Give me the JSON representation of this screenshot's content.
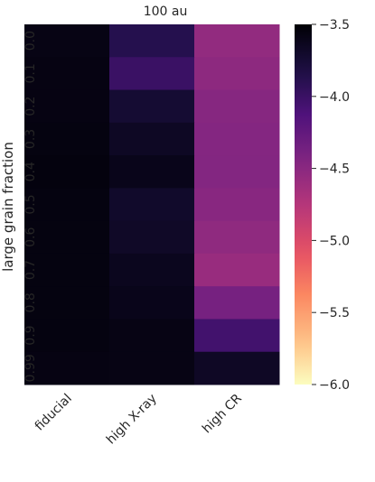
{
  "chart_data": {
    "type": "heatmap",
    "title": "100 au",
    "xlabel": "",
    "ylabel": "large grain fraction",
    "x_categories": [
      "fiducial",
      "high X-ray",
      "high CR"
    ],
    "y_categories": [
      "0.0",
      "0.1",
      "0.2",
      "0.3",
      "0.4",
      "0.5",
      "0.6",
      "0.7",
      "0.8",
      "0.9",
      "0.99"
    ],
    "values": [
      [
        -3.58,
        -3.88,
        -4.55
      ],
      [
        -3.57,
        -4.0,
        -4.52
      ],
      [
        -3.57,
        -3.74,
        -4.48
      ],
      [
        -3.56,
        -3.66,
        -4.47
      ],
      [
        -3.55,
        -3.61,
        -4.46
      ],
      [
        -3.56,
        -3.7,
        -4.49
      ],
      [
        -3.56,
        -3.68,
        -4.53
      ],
      [
        -3.56,
        -3.63,
        -4.58
      ],
      [
        -3.56,
        -3.61,
        -4.38
      ],
      [
        -3.56,
        -3.58,
        -4.05
      ],
      [
        -3.57,
        -3.58,
        -3.67
      ]
    ],
    "colorbar": {
      "range": [
        -6.0,
        -3.5
      ],
      "ticks": [
        "-3.5",
        "-4.0",
        "-4.5",
        "-5.0",
        "-5.5",
        "-6.0"
      ],
      "tick_values": [
        -3.5,
        -4.0,
        -4.5,
        -5.0,
        -5.5,
        -6.0
      ],
      "colormap": "magma",
      "reversed": true
    },
    "grid": false
  }
}
